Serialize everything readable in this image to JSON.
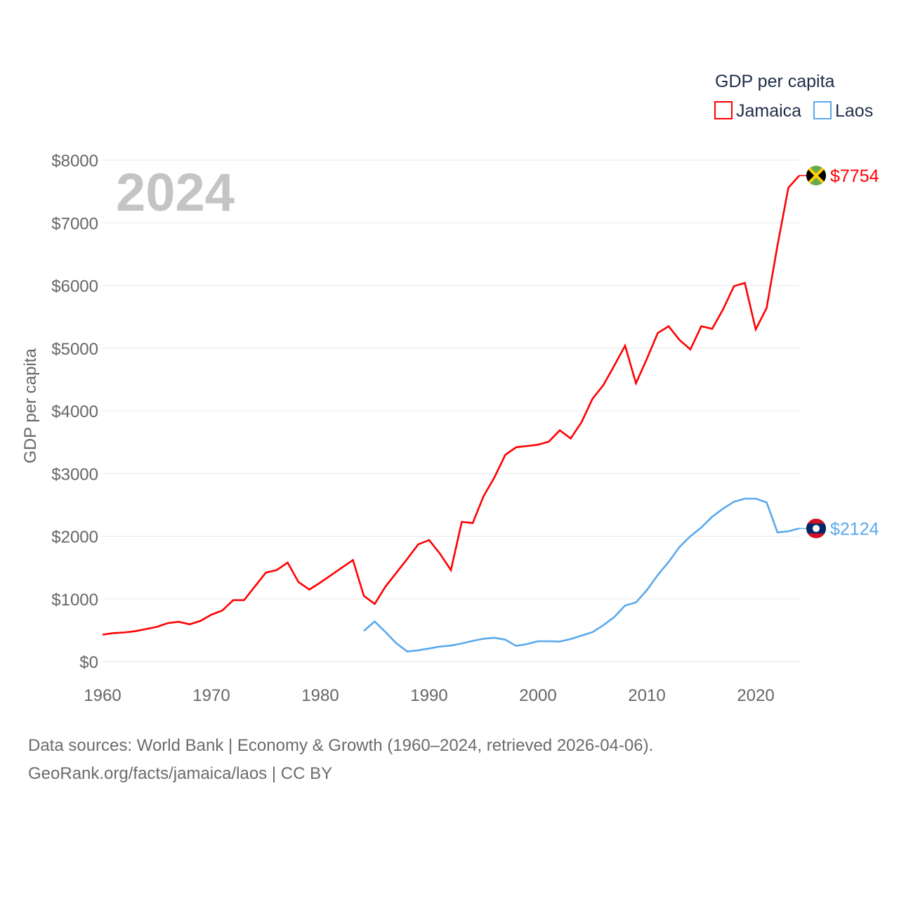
{
  "chart_data": {
    "type": "line",
    "title": "2024",
    "ylabel": "GDP per capita",
    "xlabel": "",
    "xlim": [
      1960,
      2024
    ],
    "ylim": [
      0,
      8000
    ],
    "grid": true,
    "x_ticks": [
      "1960",
      "1970",
      "1980",
      "1990",
      "2000",
      "2010",
      "2020"
    ],
    "x_tick_values": [
      1960,
      1970,
      1980,
      1990,
      2000,
      2010,
      2020
    ],
    "y_ticks": [
      "$0",
      "$1000",
      "$2000",
      "$3000",
      "$4000",
      "$5000",
      "$6000",
      "$7000",
      "$8000"
    ],
    "y_tick_values": [
      0,
      1000,
      2000,
      3000,
      4000,
      5000,
      6000,
      7000,
      8000
    ],
    "legend": {
      "title": "GDP per capita",
      "position": "top-right"
    },
    "series": [
      {
        "name": "Jamaica",
        "color": "#ff0000",
        "end_label": "$7754",
        "x_start": 1960,
        "values": [
          430,
          455,
          465,
          485,
          520,
          555,
          615,
          635,
          595,
          650,
          750,
          815,
          980,
          980,
          1200,
          1420,
          1460,
          1580,
          1270,
          1150,
          1260,
          1380,
          1500,
          1620,
          1050,
          920,
          1200,
          1420,
          1640,
          1870,
          1940,
          1720,
          1460,
          2230,
          2210,
          2640,
          2940,
          3300,
          3420,
          3440,
          3460,
          3510,
          3690,
          3560,
          3820,
          4190,
          4410,
          4720,
          5040,
          4440,
          4830,
          5240,
          5350,
          5130,
          4980,
          5350,
          5310,
          5620,
          5990,
          6040,
          5300,
          5640,
          6640,
          7560,
          7754
        ]
      },
      {
        "name": "Laos",
        "color": "#5aa9ee",
        "end_label": "$2124",
        "x_start": 1984,
        "values": [
          490,
          640,
          470,
          290,
          160,
          180,
          210,
          240,
          255,
          290,
          330,
          365,
          380,
          350,
          250,
          280,
          325,
          325,
          320,
          360,
          415,
          470,
          580,
          710,
          895,
          945,
          1140,
          1380,
          1590,
          1830,
          2000,
          2140,
          2310,
          2440,
          2550,
          2600,
          2600,
          2540,
          2060,
          2080,
          2124
        ]
      }
    ]
  },
  "footer": {
    "line1": "Data sources: World Bank | Economy & Growth (1960–2024, retrieved 2026-04-06).",
    "line2": "GeoRank.org/facts/jamaica/laos | CC BY"
  }
}
